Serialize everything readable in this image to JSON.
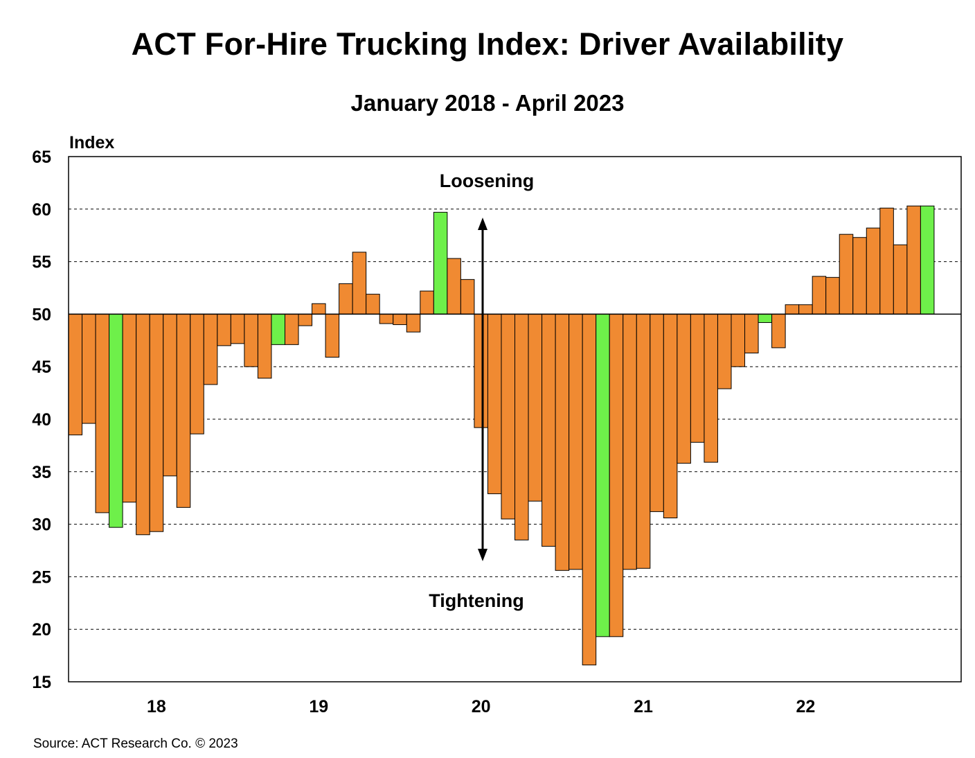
{
  "chart_data": {
    "type": "bar",
    "title": "ACT For-Hire Trucking Index: Driver Availability",
    "subtitle": "January 2018 - April 2023",
    "ylabel": "Index",
    "ylim": [
      15,
      65
    ],
    "yticks": [
      15,
      20,
      25,
      30,
      35,
      40,
      45,
      50,
      55,
      60,
      65
    ],
    "baseline": 50,
    "grid": true,
    "x_tick_labels": [
      "18",
      "19",
      "20",
      "21",
      "22"
    ],
    "annotations": {
      "top": "Loosening",
      "bottom": "Tightening"
    },
    "source": "Source:  ACT Research Co. © 2023",
    "colors": {
      "default": "#F08A32",
      "highlight": "#6EF04A",
      "border": "#000000"
    },
    "values": [
      38.5,
      39.6,
      31.1,
      29.7,
      32.1,
      29.0,
      29.3,
      34.6,
      31.6,
      38.6,
      43.3,
      47.0,
      47.2,
      45.0,
      43.9,
      47.1,
      47.1,
      48.9,
      51.0,
      45.9,
      52.9,
      55.9,
      51.9,
      49.1,
      49.0,
      48.3,
      52.2,
      59.7,
      55.3,
      53.3,
      39.2,
      32.9,
      30.5,
      28.5,
      32.2,
      27.9,
      25.6,
      25.7,
      16.6,
      19.3,
      19.3,
      25.7,
      25.8,
      31.2,
      30.6,
      35.8,
      37.8,
      35.9,
      42.9,
      45.0,
      46.3,
      49.2,
      46.8,
      50.9,
      50.9,
      53.6,
      53.5,
      57.6,
      57.3,
      58.2,
      60.1,
      56.6,
      60.3,
      60.3
    ],
    "highlight_indices": [
      3,
      15,
      27,
      39,
      51,
      63
    ]
  }
}
